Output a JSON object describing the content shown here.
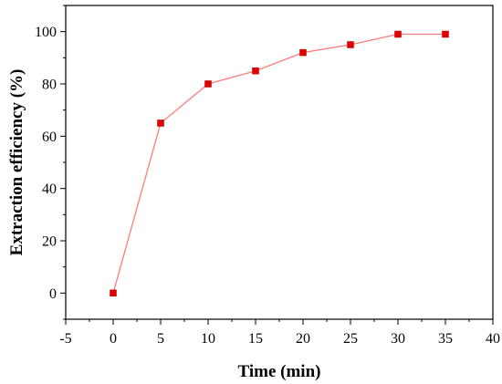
{
  "chart_data": {
    "type": "line",
    "xlabel": "Time (min)",
    "ylabel": "Extraction efficiency (%)",
    "xlim": [
      -5,
      40
    ],
    "ylim": [
      -10,
      110
    ],
    "x_ticks": [
      -5,
      0,
      5,
      10,
      15,
      20,
      25,
      30,
      35,
      40
    ],
    "y_ticks": [
      0,
      20,
      40,
      60,
      80,
      100
    ],
    "grid": false,
    "series": [
      {
        "color": "#e00000",
        "x": [
          0,
          5,
          10,
          15,
          20,
          25,
          30,
          35
        ],
        "y": [
          0,
          65,
          80,
          85,
          92,
          95,
          99,
          99
        ]
      }
    ]
  }
}
